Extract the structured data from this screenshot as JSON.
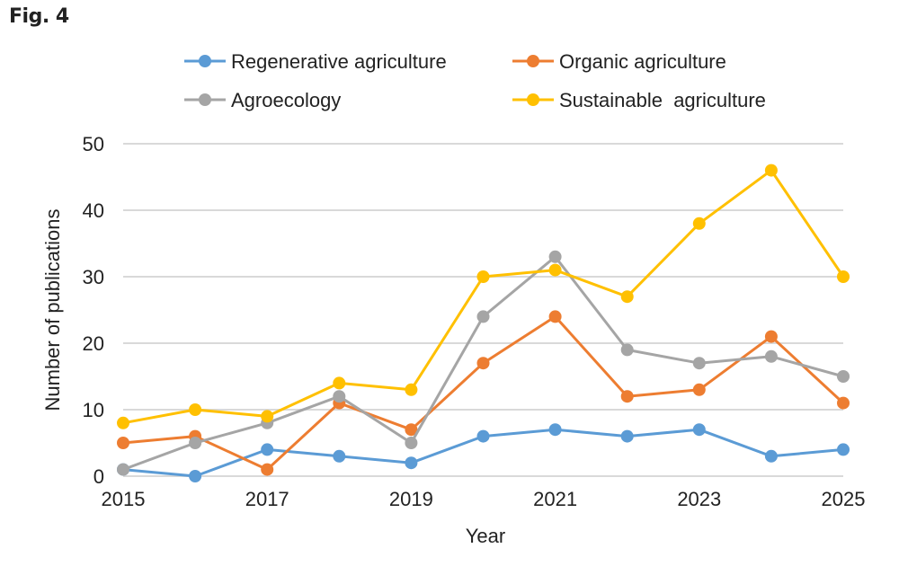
{
  "figure_label": "Fig. 4",
  "chart_data": {
    "type": "line",
    "title": "",
    "xlabel": "Year",
    "ylabel": "Number of publications",
    "x": [
      2015,
      2016,
      2017,
      2018,
      2019,
      2020,
      2021,
      2022,
      2023,
      2024,
      2025
    ],
    "x_tick_labels": [
      "2015",
      "2017",
      "2019",
      "2021",
      "2023",
      "2025"
    ],
    "y_tick_labels": [
      "0",
      "10",
      "20",
      "30",
      "40",
      "50"
    ],
    "ylim": [
      0,
      50
    ],
    "xlim": [
      2015,
      2025
    ],
    "grid": true,
    "legend_position": "top",
    "series": [
      {
        "name": "Regenerative agriculture",
        "color": "#5b9bd5",
        "values": [
          1,
          0,
          4,
          3,
          2,
          6,
          7,
          6,
          7,
          3,
          4
        ]
      },
      {
        "name": "Organic agriculture",
        "color": "#ed7d31",
        "values": [
          5,
          6,
          1,
          11,
          7,
          17,
          24,
          12,
          13,
          21,
          11
        ]
      },
      {
        "name": "Agroecology",
        "color": "#a5a5a5",
        "values": [
          1,
          5,
          8,
          12,
          5,
          24,
          33,
          19,
          17,
          18,
          15
        ]
      },
      {
        "name": "Sustainable  agriculture",
        "color": "#ffc000",
        "values": [
          8,
          10,
          9,
          14,
          13,
          30,
          31,
          27,
          38,
          46,
          30
        ]
      }
    ]
  }
}
